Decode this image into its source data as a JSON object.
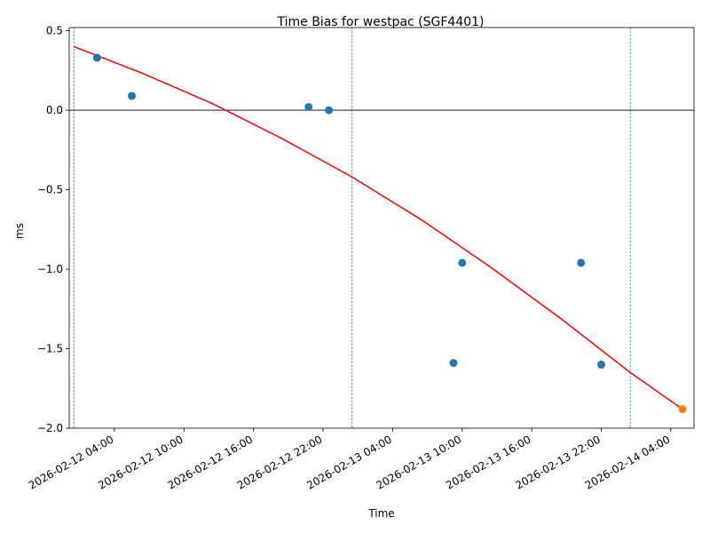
{
  "chart_data": {
    "type": "scatter",
    "title": "Time Bias for westpac (SGF4401)",
    "xlabel": "Time",
    "ylabel": "ms",
    "ylim": [
      -2.0,
      0.52
    ],
    "xlim": [
      "2026-02-12 00:06",
      "2026-02-14 06:00"
    ],
    "x_ticks": [
      "2026-02-12 04:00",
      "2026-02-12 10:00",
      "2026-02-12 16:00",
      "2026-02-12 22:00",
      "2026-02-13 04:00",
      "2026-02-13 10:00",
      "2026-02-13 16:00",
      "2026-02-13 22:00",
      "2026-02-14 04:00"
    ],
    "y_ticks": [
      0.5,
      0.0,
      -0.5,
      -1.0,
      -1.5,
      -2.0
    ],
    "y_tick_labels": [
      "0.5",
      "0.0",
      "−0.5",
      "−1.0",
      "−1.5",
      "−2.0"
    ],
    "grid": false,
    "zero_line": 0.0,
    "vertical_lines": [
      "2026-02-12 00:30",
      "2026-02-13 00:30",
      "2026-02-14 00:30"
    ],
    "colors": {
      "points": "#1f77b4",
      "latest_point": "#ff7f0e",
      "fit": "#ff0000",
      "vlines": "#1f77b4",
      "zero": "#000000"
    },
    "series": [
      {
        "type": "scatter",
        "x": [
          "2026-02-12 02:30",
          "2026-02-12 05:30",
          "2026-02-12 20:45",
          "2026-02-12 22:30",
          "2026-02-13 09:15",
          "2026-02-13 10:00",
          "2026-02-13 20:15",
          "2026-02-13 22:00"
        ],
        "y": [
          0.33,
          0.09,
          0.02,
          0.0,
          -1.59,
          -0.96,
          -0.96,
          -1.6
        ]
      },
      {
        "type": "scatter",
        "x": [
          "2026-02-14 05:00"
        ],
        "y": [
          -1.88
        ]
      },
      {
        "type": "line",
        "x": [
          "2026-02-12 00:30",
          "2026-02-12 06:30",
          "2026-02-12 12:30",
          "2026-02-12 18:30",
          "2026-02-13 00:30",
          "2026-02-13 06:30",
          "2026-02-13 12:30",
          "2026-02-13 18:30",
          "2026-02-14 00:30",
          "2026-02-14 05:00"
        ],
        "y": [
          0.4,
          0.23,
          0.04,
          -0.18,
          -0.42,
          -0.69,
          -0.99,
          -1.31,
          -1.65,
          -1.88
        ]
      }
    ]
  }
}
